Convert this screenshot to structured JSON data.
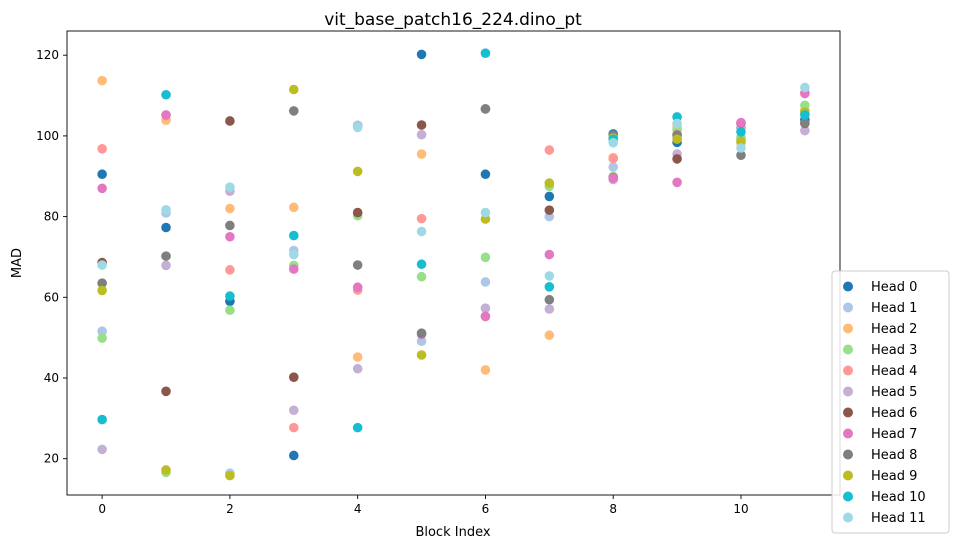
{
  "chart_data": {
    "type": "scatter",
    "title": "vit_base_patch16_224.dino_pt",
    "xlabel": "Block Index",
    "ylabel": "MAD",
    "xlim": [
      -0.55,
      11.55
    ],
    "ylim": [
      11,
      126
    ],
    "xticks": [
      0,
      2,
      4,
      6,
      8,
      10
    ],
    "yticks": [
      20,
      40,
      60,
      80,
      100,
      120
    ],
    "grid": false,
    "legend_position": "outside-right-bottom",
    "x": [
      0,
      1,
      2,
      3,
      4,
      5,
      6,
      7,
      8,
      9,
      10,
      11
    ],
    "series": [
      {
        "name": "Head 0",
        "color": "#1f77b4",
        "values": [
          90.5,
          77.3,
          59.0,
          20.8,
          102.6,
          120.2,
          90.5,
          85.0,
          100.5,
          98.4,
          102.0,
          104.0
        ]
      },
      {
        "name": "Head 1",
        "color": "#aec7e8",
        "values": [
          51.6,
          80.9,
          16.4,
          71.6,
          102.6,
          49.1,
          63.8,
          80.0,
          92.3,
          99.6,
          99.7,
          105.5
        ]
      },
      {
        "name": "Head 2",
        "color": "#ffbb78",
        "values": [
          113.7,
          103.9,
          82.0,
          82.3,
          45.2,
          95.5,
          42.0,
          50.6,
          94.6,
          102.4,
          98.2,
          106.4
        ]
      },
      {
        "name": "Head 3",
        "color": "#98df8a",
        "values": [
          49.9,
          16.6,
          56.8,
          67.9,
          80.2,
          65.1,
          69.9,
          87.5,
          90.0,
          101.5,
          99.4,
          107.6
        ]
      },
      {
        "name": "Head 4",
        "color": "#ff9896",
        "values": [
          96.8,
          105.1,
          66.8,
          27.7,
          61.8,
          79.5,
          55.2,
          96.5,
          94.4,
          100.4,
          103.0,
          110.7
        ]
      },
      {
        "name": "Head 5",
        "color": "#c5b0d5",
        "values": [
          22.3,
          67.9,
          86.3,
          32.0,
          42.3,
          100.3,
          57.3,
          57.1,
          89.2,
          95.5,
          102.0,
          101.3
        ]
      },
      {
        "name": "Head 6",
        "color": "#8c564b",
        "values": [
          68.6,
          36.7,
          103.7,
          40.2,
          81.0,
          102.7,
          106.7,
          81.6,
          89.6,
          94.3,
          103.2,
          103.1
        ]
      },
      {
        "name": "Head 7",
        "color": "#e377c2",
        "values": [
          87.0,
          105.2,
          75.0,
          67.0,
          62.5,
          50.8,
          55.3,
          70.6,
          89.5,
          88.5,
          103.3,
          110.5
        ]
      },
      {
        "name": "Head 8",
        "color": "#7f7f7f",
        "values": [
          63.5,
          70.2,
          77.8,
          106.2,
          68.0,
          51.1,
          106.7,
          59.4,
          100.2,
          100.2,
          95.2,
          103.2
        ]
      },
      {
        "name": "Head 9",
        "color": "#bcbd22",
        "values": [
          61.7,
          17.2,
          15.8,
          111.5,
          91.2,
          45.7,
          79.4,
          88.3,
          99.5,
          99.2,
          98.7,
          105.9
        ]
      },
      {
        "name": "Head 10",
        "color": "#17becf",
        "values": [
          29.7,
          110.2,
          60.3,
          75.3,
          27.7,
          68.2,
          120.5,
          62.6,
          99.2,
          104.7,
          101.0,
          105.2
        ]
      },
      {
        "name": "Head 11",
        "color": "#9edae5",
        "values": [
          68.0,
          81.7,
          87.3,
          70.6,
          102.1,
          76.3,
          81.0,
          65.3,
          98.3,
          103.1,
          97.0,
          112.0
        ]
      }
    ]
  }
}
